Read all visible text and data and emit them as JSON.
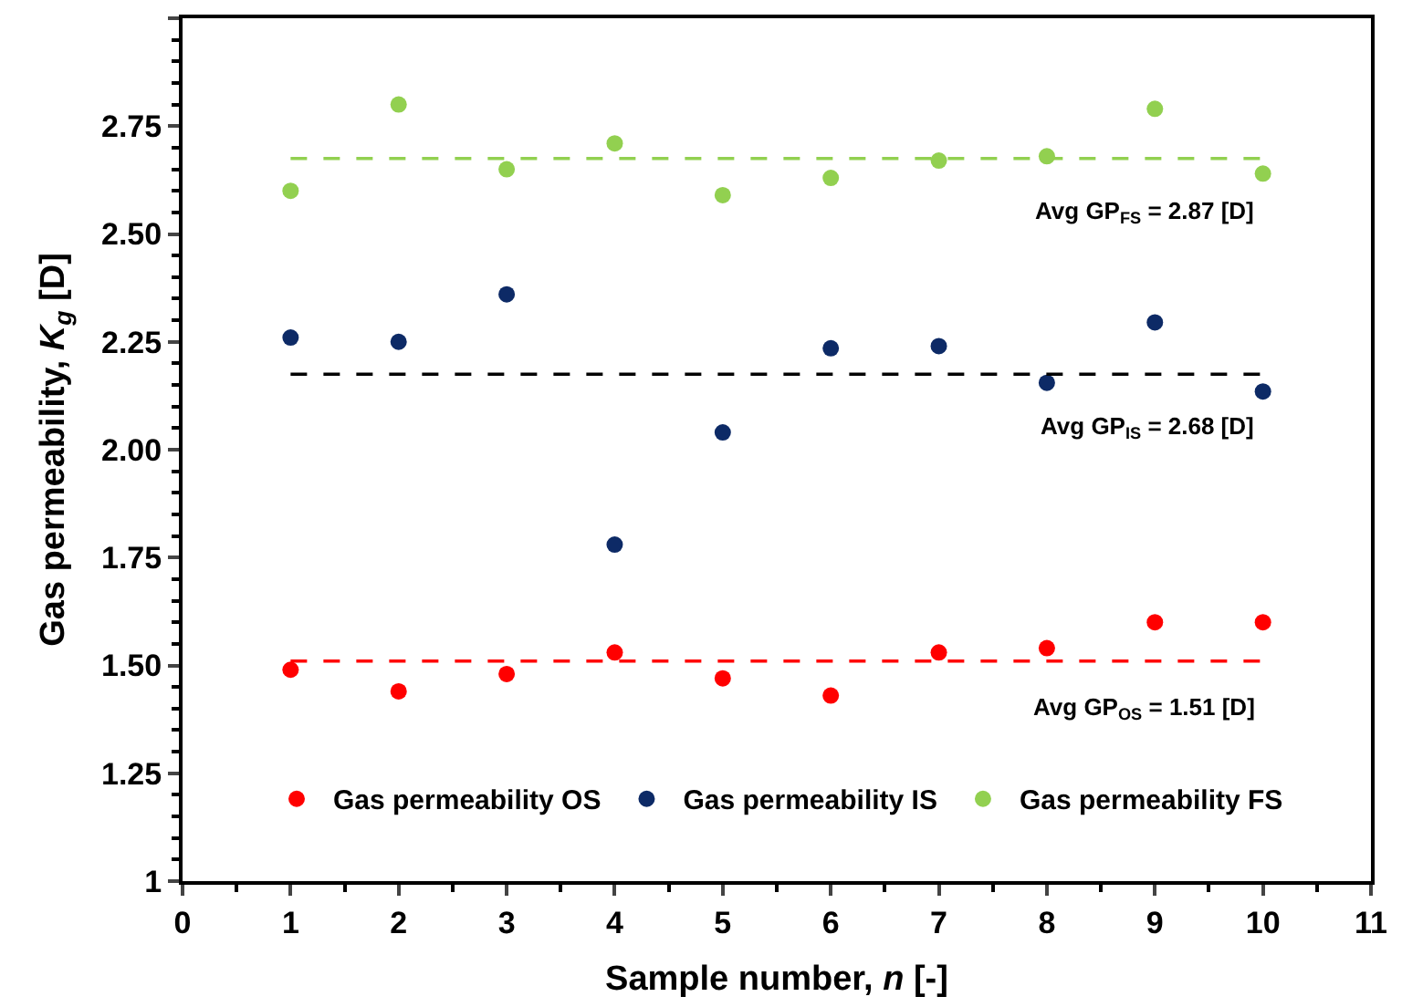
{
  "chart_data": {
    "type": "scatter",
    "xlabel": "Sample number, *n* [-]",
    "ylabel": "Gas permeability, *K$_{g}$* [D]",
    "x": [
      1,
      2,
      3,
      4,
      5,
      6,
      7,
      8,
      9,
      10
    ],
    "series": [
      {
        "name": "Gas permeability OS",
        "color": "#ff0000",
        "values": [
          1.49,
          1.44,
          1.48,
          1.53,
          1.47,
          1.43,
          1.53,
          1.54,
          1.6,
          1.6
        ]
      },
      {
        "name": "Gas permeability IS",
        "color": "#0d2a66",
        "values": [
          2.26,
          2.25,
          2.36,
          1.78,
          2.04,
          2.235,
          2.24,
          2.155,
          2.295,
          2.135
        ]
      },
      {
        "name": "Gas permeability FS",
        "color": "#92d050",
        "values": [
          2.6,
          2.8,
          2.65,
          2.71,
          2.59,
          2.63,
          2.67,
          2.68,
          2.79,
          2.64
        ]
      },
      {
        "type": "line",
        "color": "#ff0000",
        "line_style": "dashed",
        "marker": "none",
        "values": [
          1.51,
          1.51,
          1.51,
          1.51,
          1.51,
          1.51,
          1.51,
          1.51,
          1.51,
          1.51
        ]
      },
      {
        "type": "line",
        "color": "#000000",
        "line_style": "dashed",
        "marker": "none",
        "values": [
          2.175,
          2.175,
          2.175,
          2.175,
          2.175,
          2.175,
          2.175,
          2.175,
          2.175,
          2.175
        ]
      },
      {
        "type": "line",
        "color": "#92d050",
        "line_style": "dashed",
        "marker": "none",
        "values": [
          2.675,
          2.675,
          2.675,
          2.675,
          2.675,
          2.675,
          2.675,
          2.675,
          2.675,
          2.675
        ]
      }
    ],
    "annotations": [
      "Avg GP$_{FS}$ = 2.87 [D]",
      "Avg GP$_{IS}$ = 2.68 [D]",
      "Avg GP$_{OS}$ = 1.51 [D]"
    ],
    "marker": "circle",
    "grid": false,
    "legend": "bottom",
    "xlim": [
      0,
      11
    ],
    "xticks": [
      0,
      1,
      2,
      3,
      4,
      5,
      6,
      7,
      8,
      9,
      10,
      11
    ],
    "ylim": [
      1,
      3
    ],
    "yticks": [
      1,
      {
        "value": 1.25,
        "label": "1.25"
      },
      {
        "value": 1.5,
        "label": "1.50"
      },
      1.75,
      {
        "value": 2.0,
        "label": "2.00"
      },
      2.25,
      {
        "value": 2.5,
        "label": "2.50"
      },
      2.75,
      {
        "value": 3,
        "label": null
      }
    ]
  }
}
